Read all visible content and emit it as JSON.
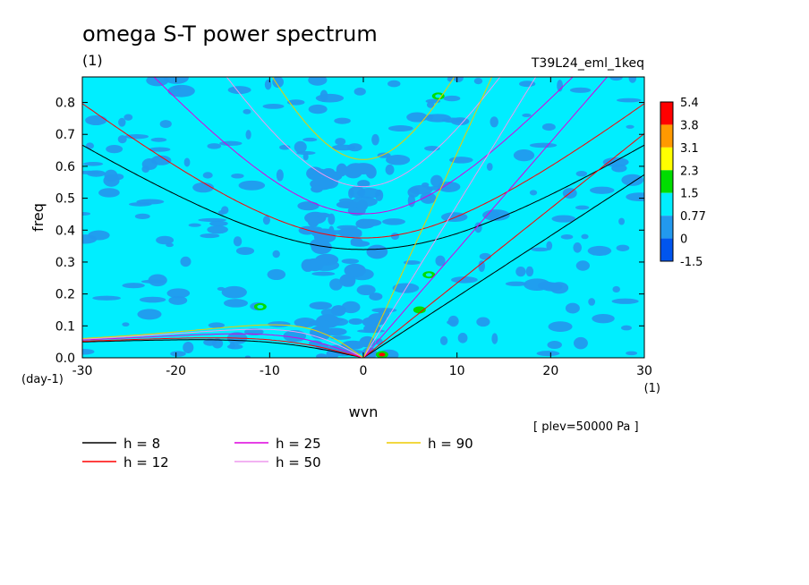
{
  "chart_data": {
    "type": "heatmap",
    "title": "omega S-T power spectrum",
    "subtitle": "(1)",
    "run_label": "T39L24_eml_1keq",
    "xlabel": "wvn",
    "ylabel": "freq",
    "x_unit": "(1)",
    "y_unit": "(day-1)",
    "note": "[ plev=50000 Pa ]",
    "xlim": [
      -30,
      30
    ],
    "ylim": [
      0,
      0.88
    ],
    "x_ticks": [
      "-30",
      "-20",
      "-10",
      "0",
      "10",
      "20",
      "30"
    ],
    "x_tick_values": [
      -30,
      -20,
      -10,
      0,
      10,
      20,
      30
    ],
    "y_ticks": [
      "0.0",
      "0.1",
      "0.2",
      "0.3",
      "0.4",
      "0.5",
      "0.6",
      "0.7",
      "0.8"
    ],
    "y_tick_values": [
      0,
      0.1,
      0.2,
      0.3,
      0.4,
      0.5,
      0.6,
      0.7,
      0.8
    ],
    "colorbar": {
      "levels": [
        "5.4",
        "3.8",
        "3.1",
        "2.3",
        "1.5",
        "0.77",
        "0",
        "-1.5"
      ],
      "colors": [
        "#ff0000",
        "#ff9900",
        "#ffff00",
        "#00dd00",
        "#00eeff",
        "#2299ee",
        "#0055ee"
      ]
    },
    "background_color": "#00eeff",
    "dispersion_curves": [
      {
        "label": "h =  8",
        "h": 8,
        "color": "#000000"
      },
      {
        "label": "h = 12",
        "h": 12,
        "color": "#ff0000"
      },
      {
        "label": "h = 25",
        "h": 25,
        "color": "#dd00dd"
      },
      {
        "label": "h = 50",
        "h": 50,
        "color": "#ee99ee"
      },
      {
        "label": "h = 90",
        "h": 90,
        "color": "#eecc00"
      }
    ],
    "highlights": [
      {
        "x": 6,
        "y": 0.15,
        "level": "2.3"
      },
      {
        "x": 7,
        "y": 0.26,
        "level": "1.5"
      },
      {
        "x": 2,
        "y": 0.01,
        "level": "5.4"
      },
      {
        "x": 8,
        "y": 0.82,
        "level": "1.5"
      },
      {
        "x": -11,
        "y": 0.16,
        "level": "1.5"
      }
    ]
  }
}
